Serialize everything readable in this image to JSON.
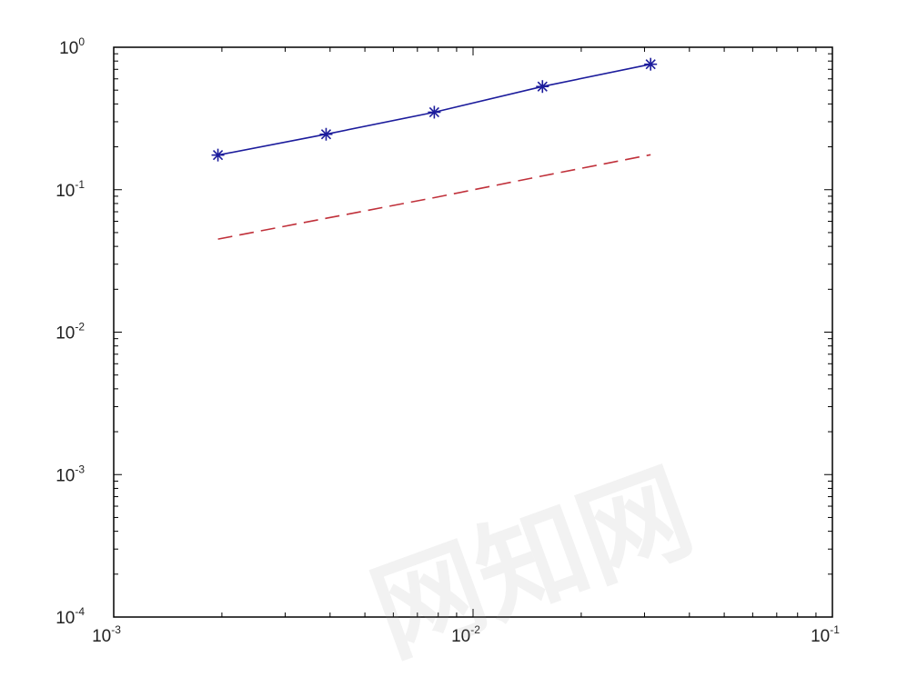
{
  "chart_data": {
    "type": "line",
    "title": "",
    "xlabel": "",
    "ylabel": "",
    "xscale": "log",
    "yscale": "log",
    "xlim": [
      0.001,
      0.1
    ],
    "ylim": [
      0.0001,
      1
    ],
    "grid": false,
    "legend": "none",
    "x_ticks": [
      {
        "base": "10",
        "exp": "-3"
      },
      {
        "base": "10",
        "exp": "-2"
      },
      {
        "base": "10",
        "exp": "-1"
      }
    ],
    "y_ticks": [
      {
        "base": "10",
        "exp": "0"
      },
      {
        "base": "10",
        "exp": "-1"
      },
      {
        "base": "10",
        "exp": "-2"
      },
      {
        "base": "10",
        "exp": "-3"
      },
      {
        "base": "10",
        "exp": "-4"
      }
    ],
    "series": [
      {
        "style": "solid",
        "marker": "asterisk",
        "color": "#1c1c9c",
        "x": [
          0.00195,
          0.0039,
          0.0078,
          0.0156,
          0.0312
        ],
        "y": [
          0.175,
          0.245,
          0.35,
          0.53,
          0.76
        ]
      },
      {
        "style": "dashed",
        "marker": "none",
        "color": "#c0303a",
        "x": [
          0.00195,
          0.0039,
          0.0078,
          0.0156,
          0.0312
        ],
        "y": [
          0.045,
          0.063,
          0.088,
          0.125,
          0.176
        ]
      }
    ]
  },
  "watermark": {
    "text": "网知网"
  }
}
